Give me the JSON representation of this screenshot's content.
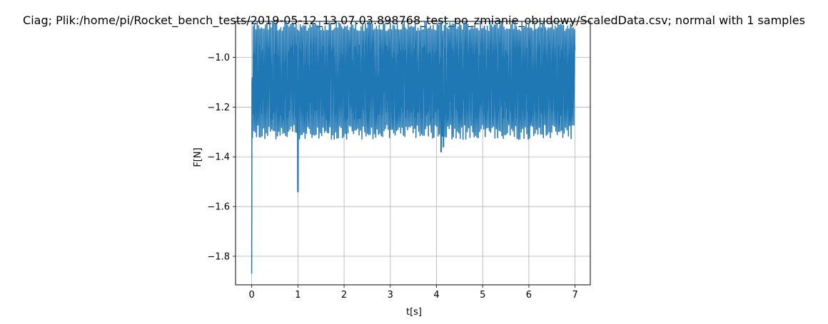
{
  "chart_data": {
    "type": "line",
    "title": "Ciag; Plik:/home/pi/Rocket_bench_tests/2019-05-12_13.07.03.898768_test_po_zmianie_obudowy/ScaledData.csv; normal with 1 samples",
    "xlabel": "t[s]",
    "ylabel": "F[N]",
    "xlim": [
      -0.35,
      7.33
    ],
    "ylim": [
      -1.915,
      -0.855
    ],
    "xticks": [
      0,
      1,
      2,
      3,
      4,
      5,
      6,
      7
    ],
    "xtick_labels": [
      "0",
      "1",
      "2",
      "3",
      "4",
      "5",
      "6",
      "7"
    ],
    "yticks": [
      -1.8,
      -1.6,
      -1.4,
      -1.2,
      -1.0
    ],
    "ytick_labels": [
      "−1.8",
      "−1.6",
      "−1.4",
      "−1.2",
      "−1.0"
    ],
    "grid": true,
    "color": "#1f77b4",
    "series": [
      {
        "x": [
          0.0,
          0.005,
          0.02,
          0.05,
          0.1,
          0.2,
          0.3,
          0.5,
          0.7,
          0.9,
          0.98,
          1.0,
          1.02,
          1.05,
          1.2,
          1.5,
          2.0,
          2.5,
          3.0,
          3.5,
          3.9,
          4.0,
          4.05,
          4.1,
          4.12,
          4.2,
          4.5,
          5.0,
          5.5,
          6.0,
          6.5,
          6.9,
          7.0
        ],
        "values": [
          -1.87,
          -1.3,
          -1.0,
          -1.15,
          -1.1,
          -1.05,
          -1.15,
          -1.1,
          -1.12,
          -1.1,
          -1.1,
          -1.54,
          -1.3,
          -1.1,
          -1.1,
          -1.12,
          -1.1,
          -1.1,
          -1.12,
          -1.1,
          -1.12,
          -1.1,
          -1.2,
          -1.38,
          -1.35,
          -1.1,
          -1.1,
          -1.12,
          -1.1,
          -1.1,
          -1.12,
          -1.1,
          -1.1
        ]
      }
    ],
    "oscillation_band": {
      "low": -1.33,
      "high": -0.895
    }
  }
}
